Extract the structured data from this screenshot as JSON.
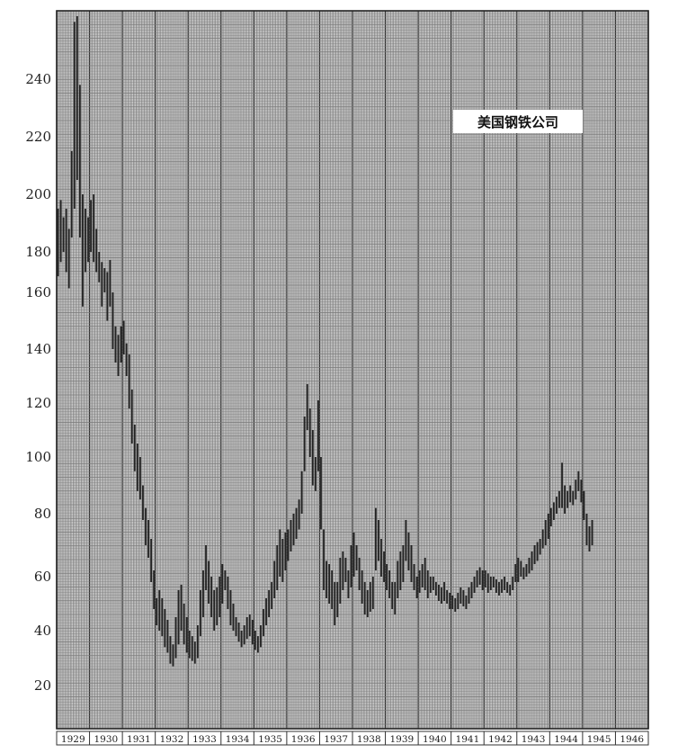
{
  "chart_data": {
    "type": "bar",
    "subtype": "monthly high-low range bars",
    "title": "美国钢铁公司",
    "xlabel": "",
    "ylabel": "",
    "ylim": [
      0,
      262
    ],
    "yticks": [
      20,
      40,
      60,
      80,
      100,
      120,
      140,
      160,
      180,
      200,
      220,
      240
    ],
    "ytick_labels": [
      "20",
      "40",
      "60",
      "80",
      "100",
      "120",
      "140",
      "160",
      "180",
      "200",
      "220",
      "240"
    ],
    "scale": "compressed upper range (20-point steps narrow above 140)",
    "grid": true,
    "bar_color": "#222222",
    "grid_color": "#777777",
    "x_start_year": 1929,
    "categories": [
      "1929",
      "1930",
      "1931",
      "1932",
      "1933",
      "1934",
      "1935",
      "1936",
      "1937",
      "1938",
      "1939",
      "1940",
      "1941",
      "1942",
      "1943",
      "1944",
      "1945",
      "1946"
    ],
    "series": [
      {
        "values": [
          [
            168,
            195
          ],
          [
            175,
            198
          ],
          [
            180,
            192
          ],
          [
            170,
            195
          ],
          [
            162,
            188
          ],
          [
            185,
            215
          ],
          [
            195,
            260
          ],
          [
            205,
            262
          ],
          [
            185,
            238
          ],
          [
            155,
            200
          ],
          [
            170,
            195
          ],
          [
            175,
            192
          ],
          [
            180,
            198
          ],
          [
            175,
            200
          ],
          [
            170,
            188
          ],
          [
            165,
            180
          ],
          [
            155,
            175
          ],
          [
            160,
            172
          ],
          [
            150,
            170
          ],
          [
            155,
            176
          ],
          [
            140,
            160
          ],
          [
            135,
            148
          ],
          [
            130,
            145
          ],
          [
            135,
            148
          ],
          [
            138,
            150
          ],
          [
            130,
            142
          ],
          [
            118,
            138
          ],
          [
            105,
            125
          ],
          [
            95,
            112
          ],
          [
            88,
            105
          ],
          [
            85,
            100
          ],
          [
            78,
            90
          ],
          [
            70,
            82
          ],
          [
            66,
            78
          ],
          [
            58,
            72
          ],
          [
            48,
            62
          ],
          [
            42,
            52
          ],
          [
            40,
            55
          ],
          [
            38,
            52
          ],
          [
            34,
            48
          ],
          [
            32,
            44
          ],
          [
            28,
            38
          ],
          [
            27,
            35
          ],
          [
            30,
            45
          ],
          [
            35,
            55
          ],
          [
            40,
            57
          ],
          [
            35,
            50
          ],
          [
            32,
            45
          ],
          [
            30,
            40
          ],
          [
            29,
            38
          ],
          [
            28,
            36
          ],
          [
            30,
            42
          ],
          [
            38,
            55
          ],
          [
            45,
            62
          ],
          [
            55,
            70
          ],
          [
            50,
            65
          ],
          [
            45,
            60
          ],
          [
            40,
            55
          ],
          [
            42,
            56
          ],
          [
            45,
            60
          ],
          [
            50,
            64
          ],
          [
            55,
            62
          ],
          [
            48,
            60
          ],
          [
            42,
            55
          ],
          [
            40,
            50
          ],
          [
            38,
            45
          ],
          [
            36,
            43
          ],
          [
            34,
            40
          ],
          [
            35,
            42
          ],
          [
            37,
            45
          ],
          [
            38,
            46
          ],
          [
            35,
            44
          ],
          [
            33,
            40
          ],
          [
            32,
            38
          ],
          [
            34,
            42
          ],
          [
            38,
            48
          ],
          [
            42,
            52
          ],
          [
            45,
            55
          ],
          [
            48,
            58
          ],
          [
            52,
            65
          ],
          [
            55,
            70
          ],
          [
            60,
            75
          ],
          [
            58,
            72
          ],
          [
            62,
            74
          ],
          [
            65,
            75
          ],
          [
            68,
            78
          ],
          [
            70,
            80
          ],
          [
            72,
            82
          ],
          [
            75,
            85
          ],
          [
            80,
            95
          ],
          [
            95,
            115
          ],
          [
            110,
            127
          ],
          [
            100,
            118
          ],
          [
            90,
            110
          ],
          [
            88,
            100
          ],
          [
            95,
            121
          ],
          [
            75,
            100
          ],
          [
            55,
            75
          ],
          [
            52,
            65
          ],
          [
            50,
            64
          ],
          [
            48,
            62
          ],
          [
            42,
            58
          ],
          [
            45,
            58
          ],
          [
            50,
            66
          ],
          [
            55,
            68
          ],
          [
            58,
            66
          ],
          [
            52,
            62
          ],
          [
            56,
            70
          ],
          [
            60,
            74
          ],
          [
            62,
            70
          ],
          [
            55,
            66
          ],
          [
            50,
            62
          ],
          [
            46,
            58
          ],
          [
            45,
            55
          ],
          [
            47,
            58
          ],
          [
            48,
            60
          ],
          [
            62,
            82
          ],
          [
            65,
            78
          ],
          [
            60,
            72
          ],
          [
            58,
            68
          ],
          [
            55,
            64
          ],
          [
            52,
            62
          ],
          [
            48,
            58
          ],
          [
            46,
            58
          ],
          [
            52,
            65
          ],
          [
            55,
            68
          ],
          [
            58,
            70
          ],
          [
            65,
            78
          ],
          [
            62,
            74
          ],
          [
            58,
            70
          ],
          [
            55,
            64
          ],
          [
            52,
            60
          ],
          [
            54,
            62
          ],
          [
            56,
            64
          ],
          [
            55,
            66
          ],
          [
            52,
            62
          ],
          [
            54,
            60
          ],
          [
            55,
            60
          ],
          [
            53,
            58
          ],
          [
            51,
            57
          ],
          [
            50,
            56
          ],
          [
            51,
            58
          ],
          [
            50,
            55
          ],
          [
            48,
            54
          ],
          [
            48,
            53
          ],
          [
            47,
            52
          ],
          [
            48,
            54
          ],
          [
            50,
            56
          ],
          [
            49,
            55
          ],
          [
            48,
            53
          ],
          [
            50,
            56
          ],
          [
            52,
            58
          ],
          [
            54,
            60
          ],
          [
            56,
            62
          ],
          [
            57,
            63
          ],
          [
            55,
            62
          ],
          [
            56,
            62
          ],
          [
            54,
            61
          ],
          [
            55,
            60
          ],
          [
            56,
            60
          ],
          [
            54,
            59
          ],
          [
            53,
            58
          ],
          [
            54,
            59
          ],
          [
            55,
            60
          ],
          [
            54,
            58
          ],
          [
            53,
            57
          ],
          [
            55,
            60
          ],
          [
            58,
            64
          ],
          [
            58,
            66
          ],
          [
            60,
            65
          ],
          [
            59,
            63
          ],
          [
            60,
            64
          ],
          [
            61,
            66
          ],
          [
            62,
            68
          ],
          [
            64,
            70
          ],
          [
            65,
            71
          ],
          [
            67,
            72
          ],
          [
            69,
            75
          ],
          [
            70,
            78
          ],
          [
            72,
            80
          ],
          [
            76,
            82
          ],
          [
            78,
            84
          ],
          [
            80,
            86
          ],
          [
            82,
            88
          ],
          [
            82,
            98
          ],
          [
            80,
            90
          ],
          [
            82,
            88
          ],
          [
            84,
            90
          ],
          [
            83,
            88
          ],
          [
            85,
            92
          ],
          [
            88,
            95
          ],
          [
            84,
            92
          ],
          [
            78,
            88
          ],
          [
            70,
            80
          ],
          [
            68,
            76
          ],
          [
            70,
            78
          ]
        ]
      }
    ]
  }
}
